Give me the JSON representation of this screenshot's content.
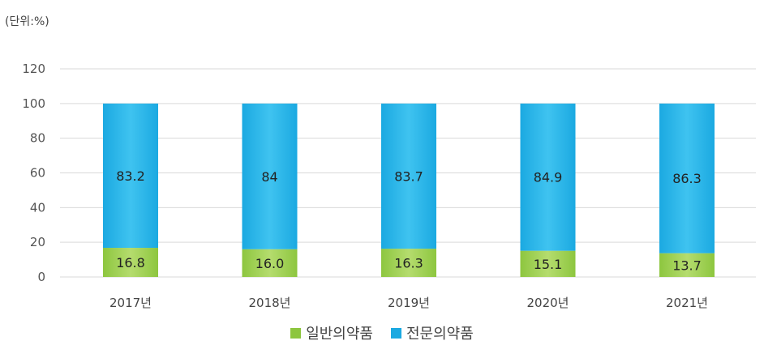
{
  "chart_data": {
    "type": "bar",
    "stacked": true,
    "unit_label": "(단위:%)",
    "categories": [
      "2017년",
      "2018년",
      "2019년",
      "2020년",
      "2021년"
    ],
    "series": [
      {
        "name": "일반의약품",
        "values": [
          16.8,
          16.0,
          16.3,
          15.1,
          13.7
        ],
        "labels": [
          "16.8",
          "16.0",
          "16.3",
          "15.1",
          "13.7"
        ],
        "color": "#8dc63f",
        "color_light": "#b5dc6e"
      },
      {
        "name": "전문의약품",
        "values": [
          83.2,
          84,
          83.7,
          84.9,
          86.3
        ],
        "labels": [
          "83.2",
          "84",
          "83.7",
          "84.9",
          "86.3"
        ],
        "color": "#1ba9e1",
        "color_light": "#3fc3f0"
      }
    ],
    "ylim": [
      0,
      120
    ],
    "yticks": [
      "0",
      "20",
      "40",
      "60",
      "80",
      "100",
      "120"
    ],
    "grid": true,
    "legend_position": "bottom-center"
  }
}
